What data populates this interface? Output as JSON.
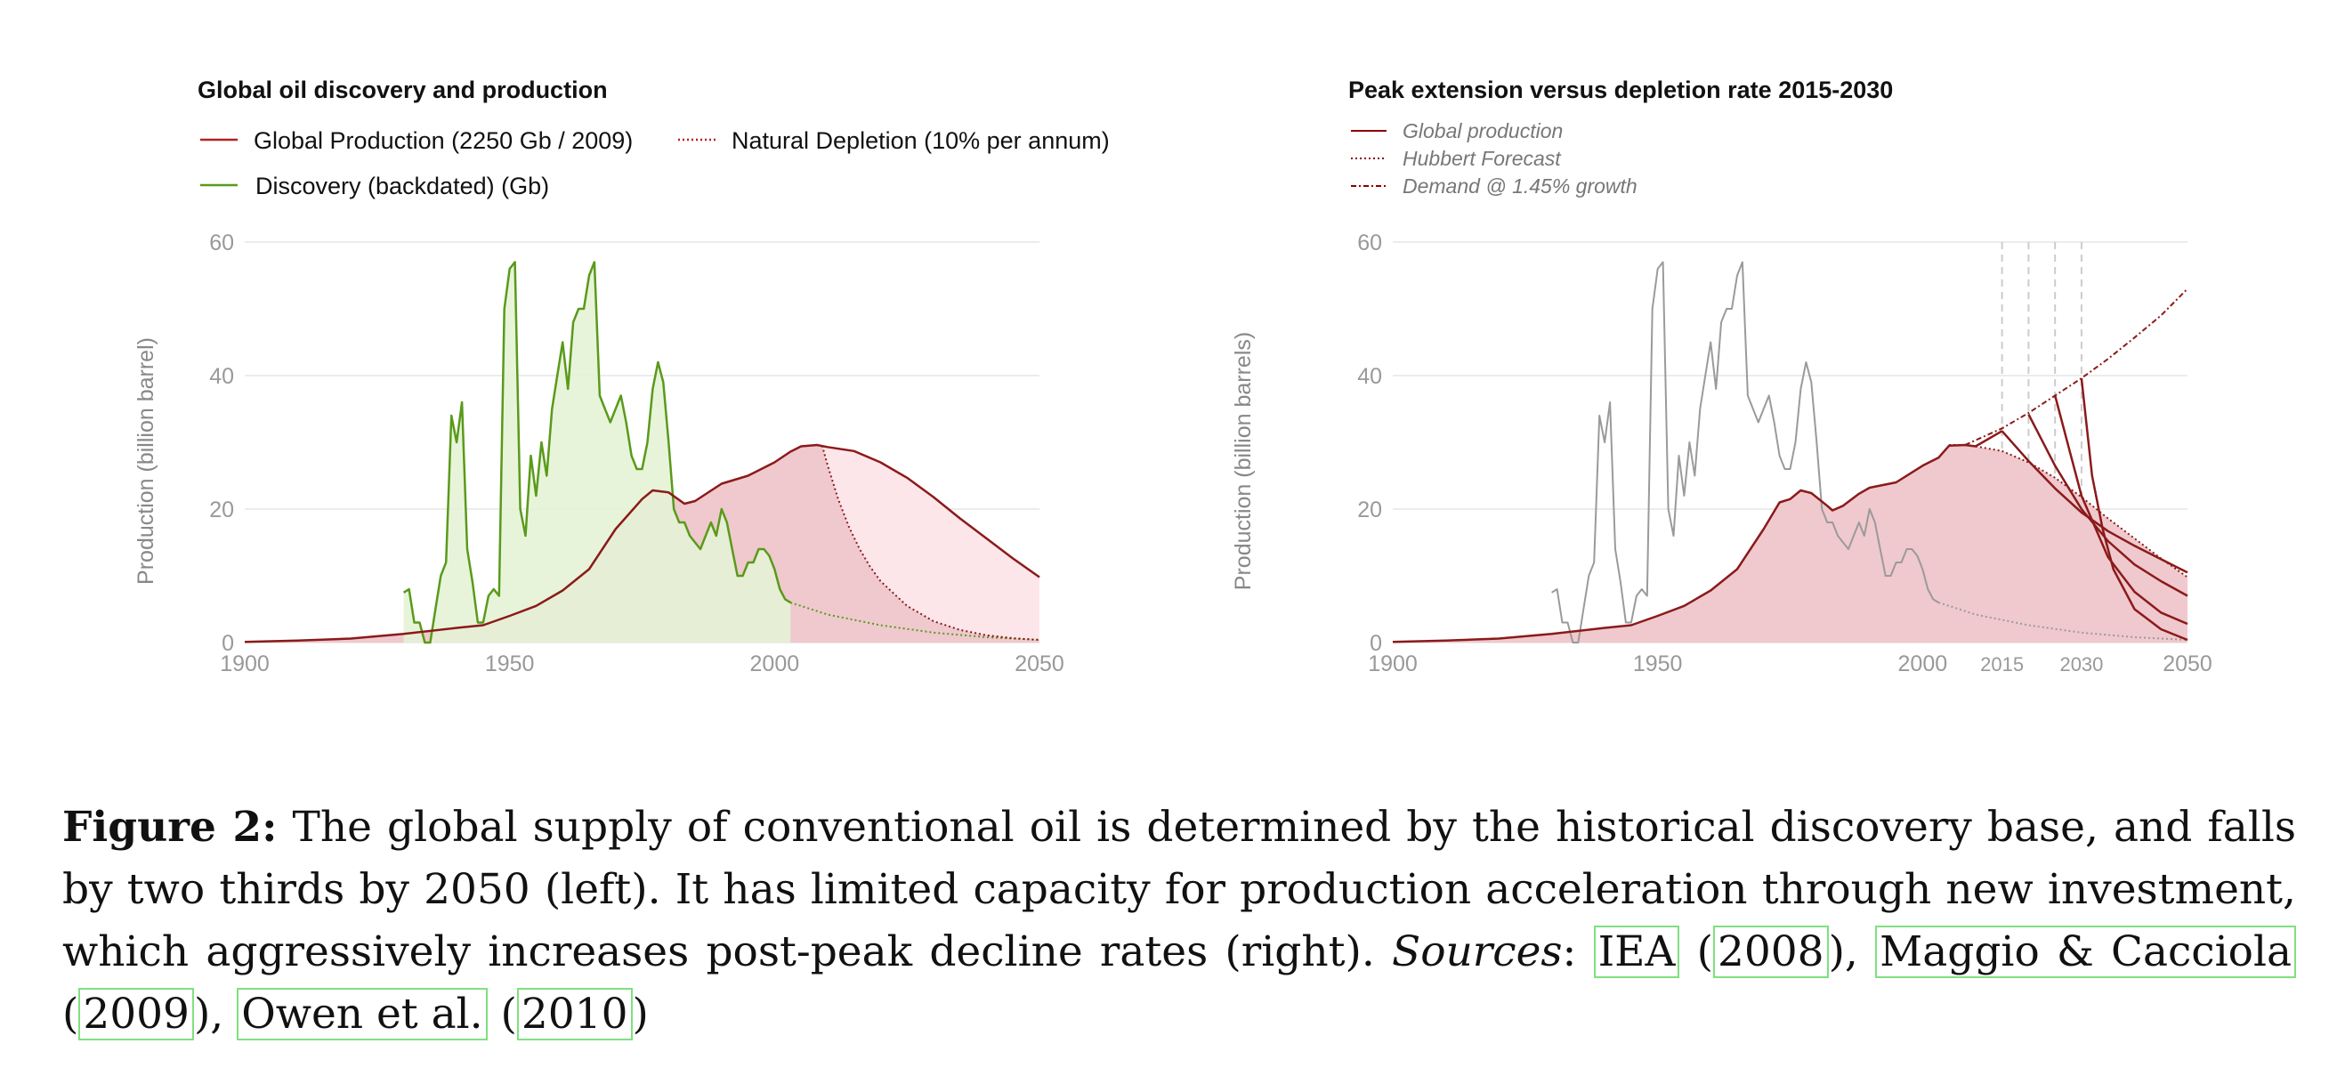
{
  "charts": [
    {
      "id": "left",
      "type": "area",
      "title": "Global oil discovery and production",
      "ylabel": "Production (billion barrel)",
      "xlim": [
        1900,
        2050
      ],
      "ylim": [
        0,
        60
      ],
      "xticks": [
        1900,
        1950,
        2000,
        2050
      ],
      "yticks": [
        0,
        20,
        40,
        60
      ],
      "grid": true,
      "legend_position": "top-left",
      "legend": [
        {
          "label": "Global Production (2250 Gb / 2009)",
          "style": "solid",
          "color": "#b22222"
        },
        {
          "label": "Natural Depletion (10% per annum)",
          "style": "dotted",
          "color": "#b22222"
        },
        {
          "label": "Discovery (backdated) (Gb)",
          "style": "solid",
          "color": "#5a9a1a"
        }
      ]
    },
    {
      "id": "right",
      "type": "area",
      "title": "Peak extension versus depletion rate 2015-2030",
      "ylabel": "Production (billion barrels)",
      "xlim": [
        1900,
        2050
      ],
      "ylim": [
        0,
        60
      ],
      "xticks": [
        1900,
        1950,
        2000,
        2015,
        2030,
        2050
      ],
      "yticks": [
        0,
        20,
        40,
        60
      ],
      "grid": true,
      "legend_position": "top-left",
      "legend": [
        {
          "label": "Global production",
          "style": "solid",
          "color": "#8b0000"
        },
        {
          "label": "Hubbert Forecast",
          "style": "dotted",
          "color": "#8b0000"
        },
        {
          "label": "Demand @ 1.45% growth",
          "style": "dashdot",
          "color": "#8b0000"
        }
      ],
      "peak_years": [
        2015,
        2020,
        2025,
        2030
      ]
    }
  ],
  "chart_data": {
    "type": "area",
    "discovery": {
      "name": "Discovery (backdated) (Gb)",
      "points": [
        [
          1930,
          7.5
        ],
        [
          1931,
          8
        ],
        [
          1932,
          3
        ],
        [
          1933,
          3
        ],
        [
          1934,
          0
        ],
        [
          1935,
          0
        ],
        [
          1936,
          5
        ],
        [
          1937,
          10
        ],
        [
          1938,
          12
        ],
        [
          1939,
          34
        ],
        [
          1940,
          30
        ],
        [
          1941,
          36
        ],
        [
          1942,
          14
        ],
        [
          1943,
          9
        ],
        [
          1944,
          3
        ],
        [
          1945,
          3
        ],
        [
          1946,
          7
        ],
        [
          1947,
          8
        ],
        [
          1948,
          7
        ],
        [
          1949,
          50
        ],
        [
          1950,
          56
        ],
        [
          1951,
          57
        ],
        [
          1952,
          20
        ],
        [
          1953,
          16
        ],
        [
          1954,
          28
        ],
        [
          1955,
          22
        ],
        [
          1956,
          30
        ],
        [
          1957,
          25
        ],
        [
          1958,
          35
        ],
        [
          1959,
          40
        ],
        [
          1960,
          45
        ],
        [
          1961,
          38
        ],
        [
          1962,
          48
        ],
        [
          1963,
          50
        ],
        [
          1964,
          50
        ],
        [
          1965,
          55
        ],
        [
          1966,
          57
        ],
        [
          1967,
          37
        ],
        [
          1968,
          35
        ],
        [
          1969,
          33
        ],
        [
          1970,
          35
        ],
        [
          1971,
          37
        ],
        [
          1972,
          33
        ],
        [
          1973,
          28
        ],
        [
          1974,
          26
        ],
        [
          1975,
          26
        ],
        [
          1976,
          30
        ],
        [
          1977,
          38
        ],
        [
          1978,
          42
        ],
        [
          1979,
          39
        ],
        [
          1980,
          30
        ],
        [
          1981,
          20
        ],
        [
          1982,
          18
        ],
        [
          1983,
          18
        ],
        [
          1984,
          16
        ],
        [
          1985,
          15
        ],
        [
          1986,
          14
        ],
        [
          1987,
          16
        ],
        [
          1988,
          18
        ],
        [
          1989,
          16
        ],
        [
          1990,
          20
        ],
        [
          1991,
          18
        ],
        [
          1992,
          14
        ],
        [
          1993,
          10
        ],
        [
          1994,
          10
        ],
        [
          1995,
          12
        ],
        [
          1996,
          12
        ],
        [
          1997,
          14
        ],
        [
          1998,
          14
        ],
        [
          1999,
          13
        ],
        [
          2000,
          11
        ],
        [
          2001,
          8
        ],
        [
          2002,
          6.5
        ],
        [
          2003,
          6
        ]
      ]
    },
    "production": {
      "name": "Global Production (2250 Gb / 2009)",
      "points": [
        [
          1900,
          0.1
        ],
        [
          1910,
          0.3
        ],
        [
          1920,
          0.6
        ],
        [
          1930,
          1.3
        ],
        [
          1940,
          2.2
        ],
        [
          1945,
          2.6
        ],
        [
          1950,
          4
        ],
        [
          1955,
          5.5
        ],
        [
          1960,
          7.8
        ],
        [
          1965,
          11
        ],
        [
          1970,
          17
        ],
        [
          1975,
          21.5
        ],
        [
          1977,
          22.8
        ],
        [
          1980,
          22.5
        ],
        [
          1983,
          20.8
        ],
        [
          1985,
          21.2
        ],
        [
          1990,
          23.8
        ],
        [
          1995,
          25
        ],
        [
          2000,
          27
        ],
        [
          2003,
          28.6
        ],
        [
          2005,
          29.4
        ],
        [
          2008,
          29.6
        ],
        [
          2010,
          29.3
        ],
        [
          2015,
          28.7
        ],
        [
          2020,
          27
        ],
        [
          2025,
          24.7
        ],
        [
          2030,
          21.8
        ],
        [
          2035,
          18.6
        ],
        [
          2040,
          15.6
        ],
        [
          2045,
          12.6
        ],
        [
          2050,
          9.8
        ]
      ]
    },
    "natural_depletion": {
      "name": "Natural Depletion (10% per annum)",
      "points": [
        [
          2009,
          29.5
        ],
        [
          2010,
          26.6
        ],
        [
          2012,
          21.5
        ],
        [
          2014,
          17.4
        ],
        [
          2016,
          14.1
        ],
        [
          2018,
          11.4
        ],
        [
          2020,
          9.2
        ],
        [
          2025,
          5.5
        ],
        [
          2030,
          3.2
        ],
        [
          2035,
          1.9
        ],
        [
          2040,
          1.1
        ],
        [
          2045,
          0.65
        ],
        [
          2050,
          0.4
        ]
      ]
    },
    "discovery_tail": {
      "name": "",
      "points": [
        [
          2003,
          6
        ],
        [
          2010,
          4.2
        ],
        [
          2020,
          2.6
        ],
        [
          2030,
          1.5
        ],
        [
          2040,
          0.8
        ],
        [
          2050,
          0.4
        ]
      ]
    },
    "right_production": {
      "name": "Global production",
      "points": [
        [
          1900,
          0.1
        ],
        [
          1910,
          0.3
        ],
        [
          1920,
          0.6
        ],
        [
          1930,
          1.3
        ],
        [
          1940,
          2.2
        ],
        [
          1945,
          2.6
        ],
        [
          1950,
          4
        ],
        [
          1955,
          5.5
        ],
        [
          1960,
          7.8
        ],
        [
          1965,
          11
        ],
        [
          1970,
          17
        ],
        [
          1973,
          21
        ],
        [
          1975,
          21.5
        ],
        [
          1977,
          22.8
        ],
        [
          1979,
          22.4
        ],
        [
          1982,
          20.5
        ],
        [
          1983,
          19.8
        ],
        [
          1985,
          20.5
        ],
        [
          1988,
          22.3
        ],
        [
          1990,
          23.2
        ],
        [
          1995,
          24
        ],
        [
          2000,
          26.5
        ],
        [
          2003,
          27.7
        ],
        [
          2005,
          29.5
        ],
        [
          2008,
          29.6
        ],
        [
          2010,
          29.4
        ],
        [
          2015,
          31.7
        ]
      ]
    },
    "hubbert_forecast": {
      "name": "Hubbert Forecast",
      "points": [
        [
          2005,
          29.6
        ],
        [
          2008,
          29.6
        ],
        [
          2010,
          29.4
        ],
        [
          2015,
          28.7
        ],
        [
          2020,
          27
        ],
        [
          2025,
          24.7
        ],
        [
          2030,
          21.8
        ],
        [
          2035,
          18.6
        ],
        [
          2040,
          15.6
        ],
        [
          2045,
          12.6
        ],
        [
          2050,
          9.8
        ]
      ]
    },
    "demand": {
      "name": "Demand @ 1.45% growth",
      "points": [
        [
          2008,
          29.6
        ],
        [
          2015,
          32.1
        ],
        [
          2020,
          34.4
        ],
        [
          2025,
          37
        ],
        [
          2030,
          39.6
        ],
        [
          2035,
          42.5
        ],
        [
          2040,
          45.7
        ],
        [
          2045,
          49
        ],
        [
          2050,
          53
        ]
      ]
    },
    "peak_extension": [
      {
        "peak_year": 2015,
        "points": [
          [
            2015,
            31.7
          ],
          [
            2020,
            27.2
          ],
          [
            2025,
            23.1
          ],
          [
            2030,
            19.5
          ],
          [
            2035,
            16.7
          ],
          [
            2040,
            14.5
          ],
          [
            2045,
            12.5
          ],
          [
            2050,
            10.5
          ]
        ]
      },
      {
        "peak_year": 2020,
        "points": [
          [
            2020,
            34.2
          ],
          [
            2025,
            26.5
          ],
          [
            2030,
            20
          ],
          [
            2035,
            15.2
          ],
          [
            2040,
            11.7
          ],
          [
            2045,
            9.2
          ],
          [
            2050,
            7
          ]
        ]
      },
      {
        "peak_year": 2025,
        "points": [
          [
            2025,
            37
          ],
          [
            2028,
            28
          ],
          [
            2030,
            22
          ],
          [
            2035,
            12.8
          ],
          [
            2040,
            7.6
          ],
          [
            2045,
            4.5
          ],
          [
            2050,
            2.8
          ]
        ]
      },
      {
        "peak_year": 2030,
        "points": [
          [
            2030,
            39.6
          ],
          [
            2032,
            25
          ],
          [
            2034,
            17
          ],
          [
            2036,
            11
          ],
          [
            2040,
            5
          ],
          [
            2045,
            2
          ],
          [
            2050,
            0.4
          ]
        ]
      }
    ],
    "right_discovery_grey": {
      "name": "",
      "points": [
        [
          1930,
          7.5
        ],
        [
          1931,
          8
        ],
        [
          1932,
          3
        ],
        [
          1933,
          3
        ],
        [
          1934,
          0
        ],
        [
          1935,
          0
        ],
        [
          1936,
          5
        ],
        [
          1937,
          10
        ],
        [
          1938,
          12
        ],
        [
          1939,
          34
        ],
        [
          1940,
          30
        ],
        [
          1941,
          36
        ],
        [
          1942,
          14
        ],
        [
          1943,
          9
        ],
        [
          1944,
          3
        ],
        [
          1945,
          3
        ],
        [
          1946,
          7
        ],
        [
          1947,
          8
        ],
        [
          1948,
          7
        ],
        [
          1949,
          50
        ],
        [
          1950,
          56
        ],
        [
          1951,
          57
        ],
        [
          1952,
          20
        ],
        [
          1953,
          16
        ],
        [
          1954,
          28
        ],
        [
          1955,
          22
        ],
        [
          1956,
          30
        ],
        [
          1957,
          25
        ],
        [
          1958,
          35
        ],
        [
          1959,
          40
        ],
        [
          1960,
          45
        ],
        [
          1961,
          38
        ],
        [
          1962,
          48
        ],
        [
          1963,
          50
        ],
        [
          1964,
          50
        ],
        [
          1965,
          55
        ],
        [
          1966,
          57
        ],
        [
          1967,
          37
        ],
        [
          1968,
          35
        ],
        [
          1969,
          33
        ],
        [
          1970,
          35
        ],
        [
          1971,
          37
        ],
        [
          1972,
          33
        ],
        [
          1973,
          28
        ],
        [
          1974,
          26
        ],
        [
          1975,
          26
        ],
        [
          1976,
          30
        ],
        [
          1977,
          38
        ],
        [
          1978,
          42
        ],
        [
          1979,
          39
        ],
        [
          1980,
          30
        ],
        [
          1981,
          20
        ],
        [
          1982,
          18
        ],
        [
          1983,
          18
        ],
        [
          1984,
          16
        ],
        [
          1985,
          15
        ],
        [
          1986,
          14
        ],
        [
          1987,
          16
        ],
        [
          1988,
          18
        ],
        [
          1989,
          16
        ],
        [
          1990,
          20
        ],
        [
          1991,
          18
        ],
        [
          1992,
          14
        ],
        [
          1993,
          10
        ],
        [
          1994,
          10
        ],
        [
          1995,
          12
        ],
        [
          1996,
          12
        ],
        [
          1997,
          14
        ],
        [
          1998,
          14
        ],
        [
          1999,
          13
        ],
        [
          2000,
          11
        ],
        [
          2001,
          8
        ],
        [
          2002,
          6.5
        ],
        [
          2003,
          6
        ]
      ]
    }
  },
  "caption": {
    "label": "Figure 2:",
    "text_main": "The global supply of conventional oil is determined by the historical discovery base, and falls by two thirds by 2050 (left).  It has limited capacity for production acceleration through new investment, which aggressively increases post-peak decline rates (right).",
    "sources_label": "Sources",
    "refs": [
      {
        "author": "IEA",
        "year": "2008"
      },
      {
        "author": "Maggio & Cacciola",
        "year": "2009"
      },
      {
        "author": "Owen et al.",
        "year": "2010"
      }
    ]
  },
  "colors": {
    "production": "#8b1a1a",
    "production_fill": "#efc9ce",
    "forecast_fill": "#fce6ea",
    "discovery": "#5a9a1a",
    "discovery_fill": "#e4f3d6",
    "grey_line": "#9a9a9a",
    "ref_box": "#7fe07f"
  }
}
